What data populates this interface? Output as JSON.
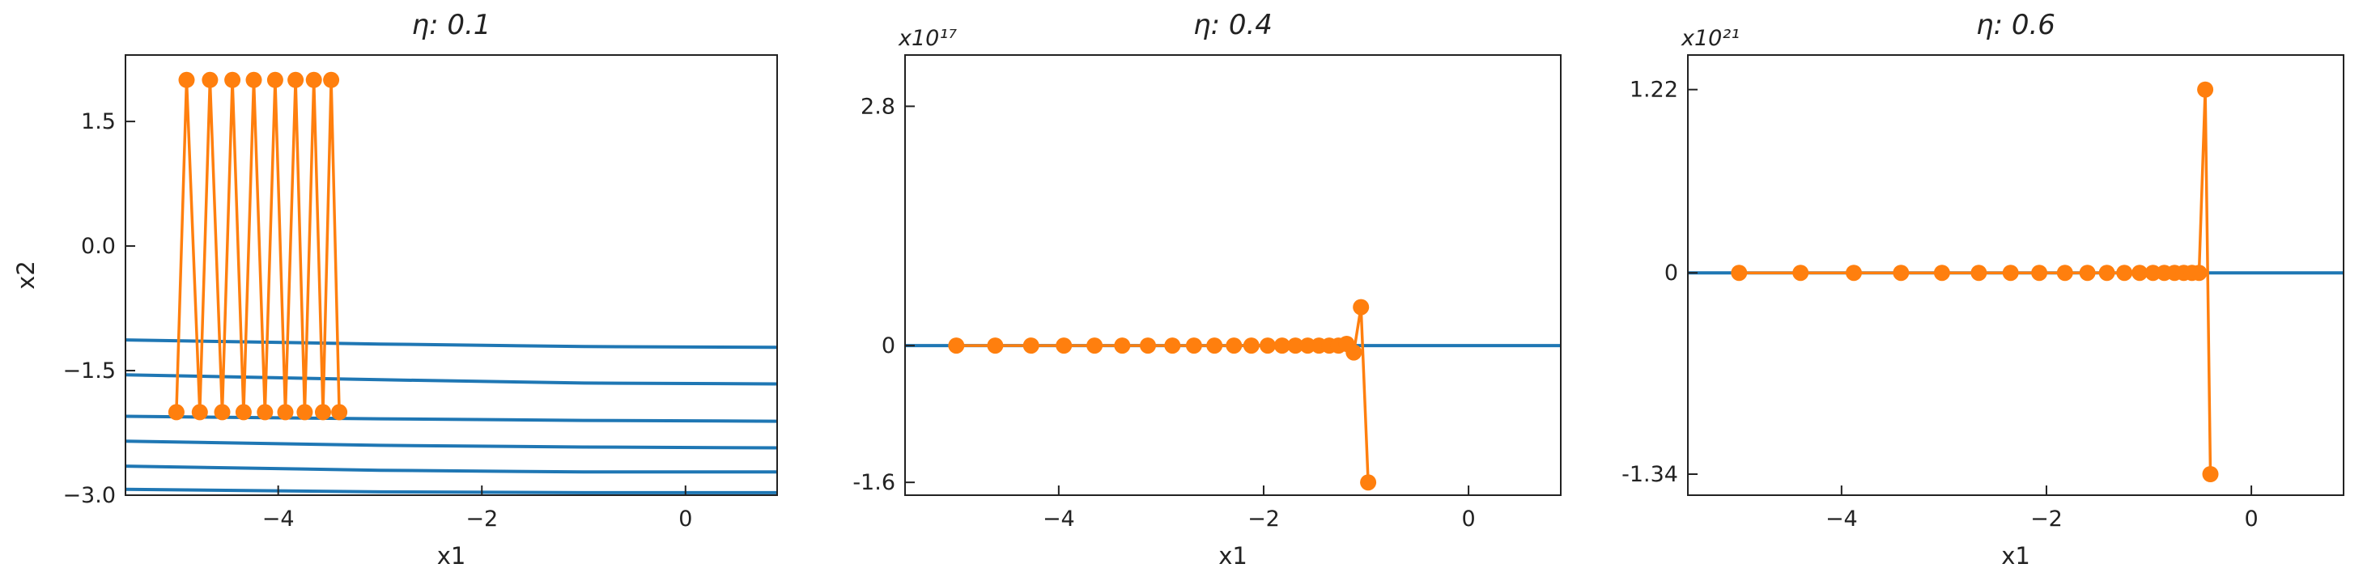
{
  "colors": {
    "trajectory": "#ff7f0e",
    "contour": "#1f77b4",
    "axes": "#222222",
    "background": "#ffffff"
  },
  "chart_data": [
    {
      "type": "line",
      "title": "η: 0.1",
      "xlabel": "x1",
      "ylabel": "x2",
      "xlim": [
        -5.5,
        0.9
      ],
      "ylim": [
        -3.0,
        2.3
      ],
      "xticks": [
        -4,
        -2,
        0
      ],
      "xtick_labels": [
        "−4",
        "−2",
        "0"
      ],
      "yticks": [
        1.5,
        0.0,
        -1.5,
        -3.0
      ],
      "ytick_labels": [
        "1.5",
        "0.0",
        "−1.5",
        "−3.0"
      ],
      "multiplier_label": "",
      "grid": false,
      "legend": "none",
      "contours": [
        {
          "x": [
            -5.5,
            -3.0,
            -1.0,
            0.9
          ],
          "y": [
            -1.13,
            -1.18,
            -1.21,
            -1.22
          ]
        },
        {
          "x": [
            -5.5,
            -3.0,
            -1.0,
            0.9
          ],
          "y": [
            -1.55,
            -1.61,
            -1.65,
            -1.66
          ]
        },
        {
          "x": [
            -5.5,
            -3.0,
            -1.0,
            0.9
          ],
          "y": [
            -2.05,
            -2.08,
            -2.1,
            -2.11
          ]
        },
        {
          "x": [
            -5.5,
            -3.0,
            -1.0,
            0.9
          ],
          "y": [
            -2.35,
            -2.4,
            -2.42,
            -2.43
          ]
        },
        {
          "x": [
            -5.5,
            -3.0,
            -1.0,
            0.9
          ],
          "y": [
            -2.65,
            -2.7,
            -2.72,
            -2.72
          ]
        },
        {
          "x": [
            -5.5,
            -3.0,
            -1.0,
            0.9
          ],
          "y": [
            -2.93,
            -2.96,
            -2.97,
            -2.97
          ]
        }
      ],
      "trajectory": {
        "x": [
          -5.0,
          -4.9,
          -4.77,
          -4.67,
          -4.55,
          -4.45,
          -4.34,
          -4.24,
          -4.13,
          -4.03,
          -3.93,
          -3.83,
          -3.74,
          -3.65,
          -3.56,
          -3.48,
          -3.4
        ],
        "y": [
          -2.0,
          2.0,
          -2.0,
          2.0,
          -2.0,
          2.0,
          -2.0,
          2.0,
          -2.0,
          2.0,
          -2.0,
          2.0,
          -2.0,
          2.0,
          -2.0,
          2.0,
          -2.0
        ]
      }
    },
    {
      "type": "line",
      "title": "η: 0.4",
      "xlabel": "x1",
      "ylabel": "",
      "xlim": [
        -5.5,
        0.9
      ],
      "ylim": [
        -1.75,
        3.4
      ],
      "xticks": [
        -4,
        -2,
        0
      ],
      "xtick_labels": [
        "−4",
        "−2",
        "0"
      ],
      "yticks": [
        2.8,
        0,
        -1.6
      ],
      "ytick_labels": [
        "2.8",
        "0",
        "-1.6"
      ],
      "multiplier_label": "x10¹⁷",
      "grid": false,
      "legend": "none",
      "contours": [
        {
          "x": [
            -5.5,
            0.9
          ],
          "y": [
            0.0,
            0.0
          ]
        }
      ],
      "trajectory": {
        "x": [
          -5.0,
          -4.62,
          -4.27,
          -3.95,
          -3.65,
          -3.38,
          -3.13,
          -2.89,
          -2.68,
          -2.48,
          -2.29,
          -2.12,
          -1.96,
          -1.82,
          -1.69,
          -1.57,
          -1.46,
          -1.36,
          -1.27,
          -1.19,
          -1.12,
          -1.05,
          -0.98
        ],
        "y": [
          0,
          0,
          0,
          0,
          0,
          0,
          0,
          0,
          0,
          0,
          0,
          0,
          0,
          0,
          0,
          0,
          0,
          0,
          0,
          0.02,
          -0.08,
          0.45,
          -1.6
        ]
      }
    },
    {
      "type": "line",
      "title": "η: 0.6",
      "xlabel": "x1",
      "ylabel": "",
      "xlim": [
        -5.5,
        0.9
      ],
      "ylim": [
        -1.48,
        1.45
      ],
      "xticks": [
        -4,
        -2,
        0
      ],
      "xtick_labels": [
        "−4",
        "−2",
        "0"
      ],
      "yticks": [
        1.22,
        0,
        -1.34
      ],
      "ytick_labels": [
        "1.22",
        "0",
        "-1.34"
      ],
      "multiplier_label": "x10²¹",
      "grid": false,
      "legend": "none",
      "contours": [
        {
          "x": [
            -5.5,
            0.9
          ],
          "y": [
            0.0,
            0.0
          ]
        }
      ],
      "trajectory": {
        "x": [
          -5.0,
          -4.4,
          -3.88,
          -3.42,
          -3.02,
          -2.66,
          -2.35,
          -2.07,
          -1.82,
          -1.6,
          -1.41,
          -1.24,
          -1.09,
          -0.96,
          -0.85,
          -0.75,
          -0.66,
          -0.58,
          -0.51,
          -0.45,
          -0.4
        ],
        "y": [
          0,
          0,
          0,
          0,
          0,
          0,
          0,
          0,
          0,
          0,
          0,
          0,
          0,
          0,
          0,
          0,
          0,
          0,
          0,
          1.22,
          -1.34
        ]
      }
    }
  ]
}
